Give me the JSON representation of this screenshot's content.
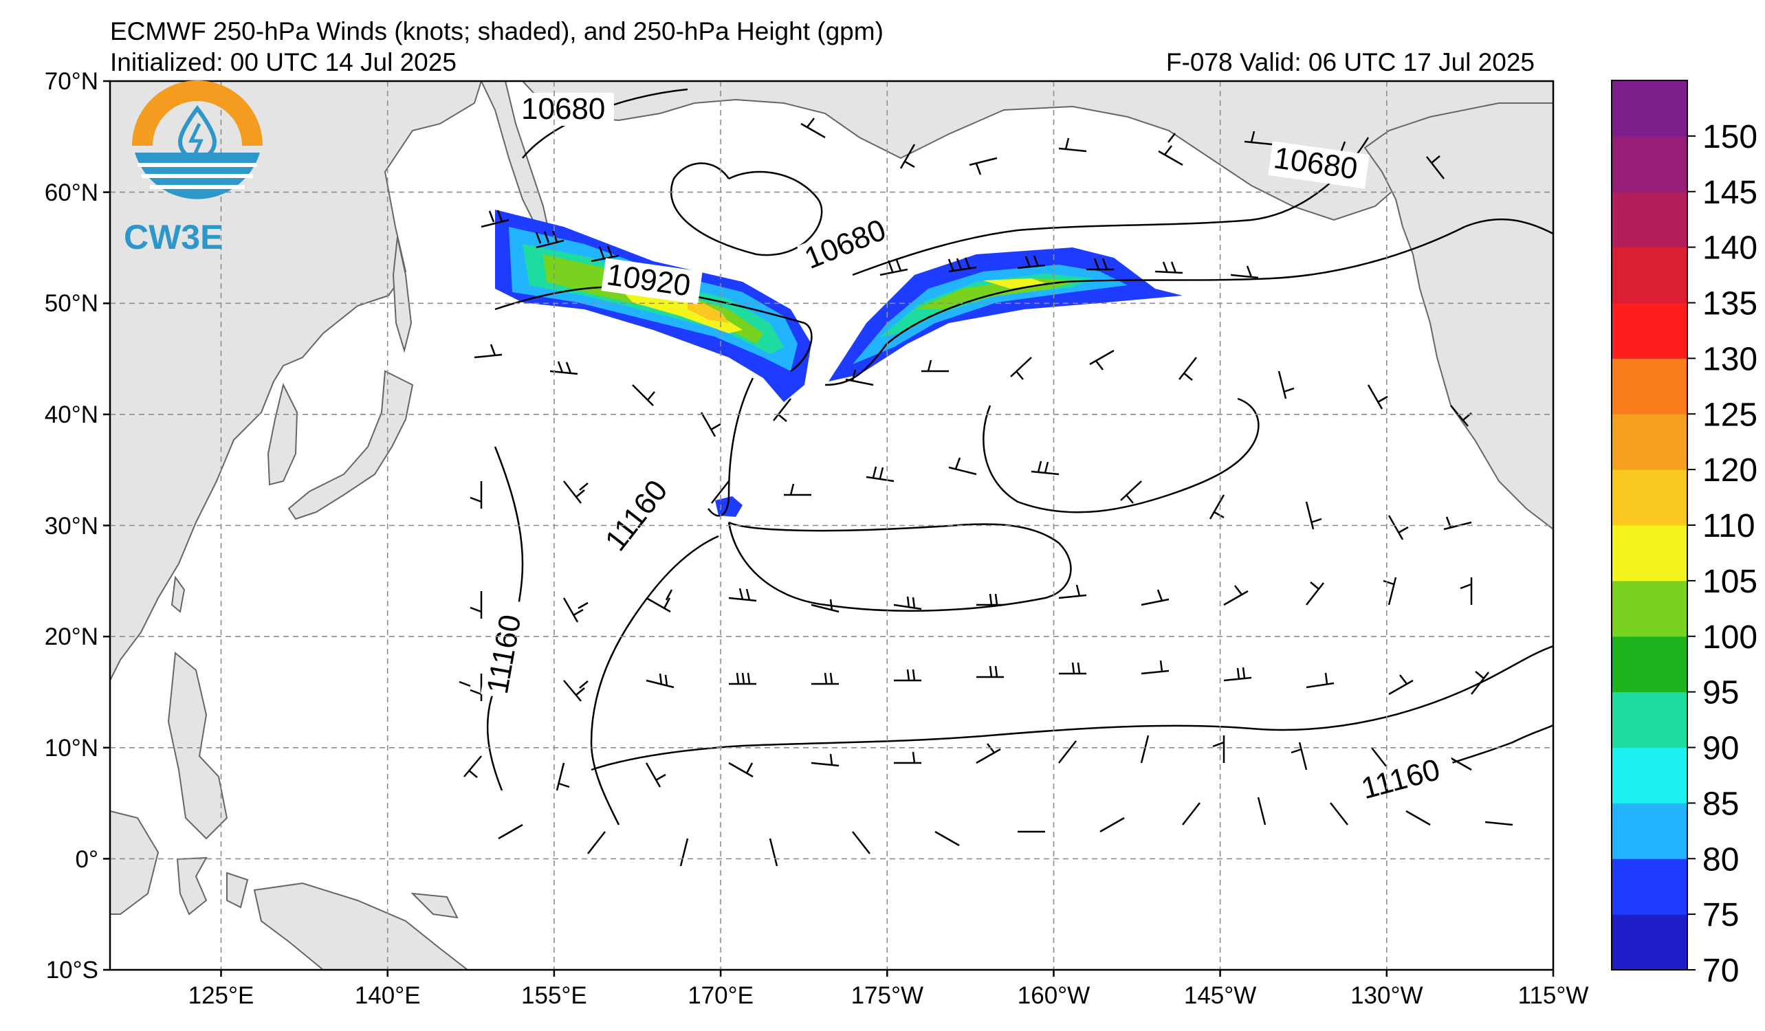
{
  "header": {
    "title": "ECMWF 250-hPa Winds (knots; shaded), and 250-hPa Height (gpm)",
    "initialized": "Initialized: 00 UTC 14 Jul 2025",
    "valid": "F-078  Valid: 06 UTC 17 Jul 2025"
  },
  "logo": {
    "text": "CW3E",
    "color": "#2d97c9",
    "ring_color": "#f39c1f"
  },
  "map": {
    "extent": {
      "lon_min": 115,
      "lon_max": 245,
      "lat_min": -10,
      "lat_max": 70
    },
    "lat_labels": [
      "70°N",
      "60°N",
      "50°N",
      "40°N",
      "30°N",
      "20°N",
      "10°N",
      "0°",
      "10°S"
    ],
    "lat_values": [
      70,
      60,
      50,
      40,
      30,
      20,
      10,
      0,
      -10
    ],
    "lon_labels": [
      "125°E",
      "140°E",
      "155°E",
      "170°E",
      "175°W",
      "160°W",
      "145°W",
      "130°W",
      "115°W"
    ],
    "lon_values": [
      125,
      140,
      155,
      170,
      185,
      200,
      215,
      230,
      245
    ],
    "land_color": "#e4e4e4",
    "coast_color": "#666666",
    "grid": "dashed"
  },
  "contours": [
    {
      "label": "10680",
      "value": 10680
    },
    {
      "label": "10680",
      "value": 10680
    },
    {
      "label": "10680",
      "value": 10680
    },
    {
      "label": "10920",
      "value": 10920
    },
    {
      "label": "11160",
      "value": 11160
    },
    {
      "label": "11160",
      "value": 11160
    },
    {
      "label": "11160",
      "value": 11160
    }
  ],
  "jets": [
    {
      "name": "west jet",
      "max_knots": 115
    },
    {
      "name": "east jet",
      "max_knots": 105
    }
  ],
  "colorbar": {
    "levels": [
      70,
      75,
      80,
      85,
      90,
      95,
      100,
      105,
      110,
      120,
      125,
      130,
      135,
      140,
      145,
      150,
      155
    ],
    "labels": [
      "70",
      "75",
      "80",
      "85",
      "90",
      "95",
      "100",
      "105",
      "110",
      "120",
      "125",
      "130",
      "135",
      "140",
      "145",
      "150"
    ],
    "colors": [
      "#1e1ec8",
      "#1e3cff",
      "#23b4ff",
      "#1ef0f0",
      "#1edca0",
      "#1eb41e",
      "#78d21e",
      "#f5f51e",
      "#fac81e",
      "#f5a01e",
      "#fa7d1e",
      "#ff1e1e",
      "#dc1e32",
      "#b41e5a",
      "#961e78",
      "#7d1e8c"
    ]
  }
}
